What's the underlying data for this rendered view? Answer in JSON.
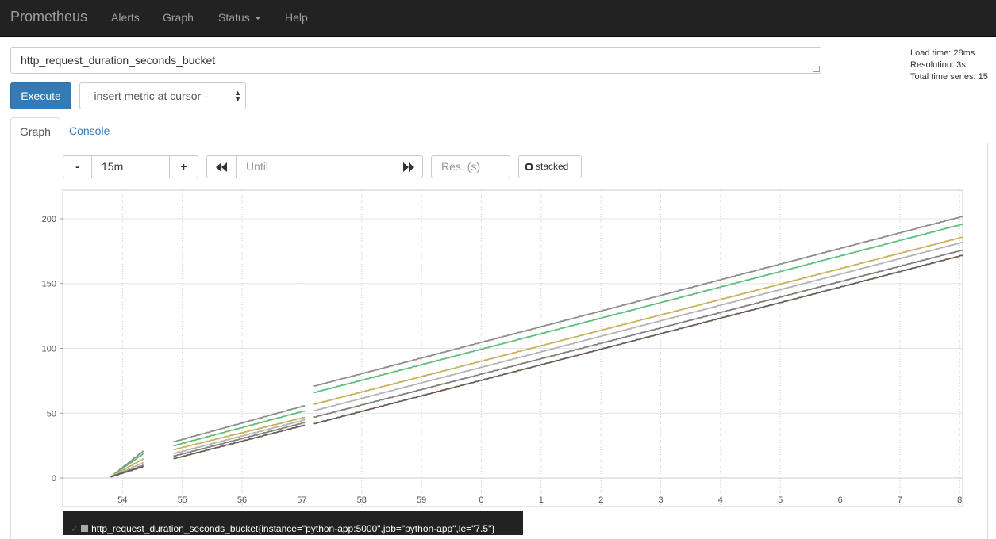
{
  "navbar": {
    "brand": "Prometheus",
    "links": [
      "Alerts",
      "Graph",
      "Status",
      "Help"
    ]
  },
  "query": {
    "expression": "http_request_duration_seconds_bucket",
    "execute_label": "Execute",
    "metric_select": "- insert metric at cursor -"
  },
  "stats": {
    "load_time": "Load time: 28ms",
    "resolution": "Resolution: 3s",
    "total_series": "Total time series: 15"
  },
  "tabs": [
    "Graph",
    "Console"
  ],
  "controls": {
    "minus": "-",
    "range": "15m",
    "plus": "+",
    "back_icon": "fast-backward-icon",
    "until_placeholder": "Until",
    "forward_icon": "fast-forward-icon",
    "res_placeholder": "Res. (s)",
    "stacked_label": "stacked"
  },
  "chart_data": {
    "type": "line",
    "x_tick_labels": [
      "54",
      "55",
      "56",
      "57",
      "58",
      "59",
      "0",
      "1",
      "2",
      "3",
      "4",
      "5",
      "6",
      "7",
      "8"
    ],
    "y_tick_labels": [
      "0",
      "50",
      "100",
      "150",
      "200"
    ],
    "ylim": [
      -22,
      222
    ],
    "xlim": [
      53.0,
      68.05
    ],
    "grid": true,
    "colors": [
      "#8c8c8c",
      "#5cbd7d",
      "#c8b15b",
      "#b3b3b3",
      "#7e7e7e",
      "#6b5b50"
    ],
    "series": [
      {
        "segments": [
          {
            "x": [
              53.8,
              54.35
            ],
            "y": [
              1,
              21
            ]
          },
          {
            "x": [
              54.85,
              57.05
            ],
            "y": [
              28,
              56
            ]
          },
          {
            "x": [
              57.2,
              68.05
            ],
            "y": [
              71,
              202
            ]
          }
        ]
      },
      {
        "segments": [
          {
            "x": [
              53.8,
              54.35
            ],
            "y": [
              1,
              19
            ]
          },
          {
            "x": [
              54.85,
              57.05
            ],
            "y": [
              25,
              52
            ]
          },
          {
            "x": [
              57.2,
              68.05
            ],
            "y": [
              66,
              196
            ]
          }
        ]
      },
      {
        "segments": [
          {
            "x": [
              53.8,
              54.35
            ],
            "y": [
              1,
              15
            ]
          },
          {
            "x": [
              54.85,
              57.05
            ],
            "y": [
              22,
              47
            ]
          },
          {
            "x": [
              57.2,
              68.05
            ],
            "y": [
              57,
              186
            ]
          }
        ]
      },
      {
        "segments": [
          {
            "x": [
              53.8,
              54.35
            ],
            "y": [
              1,
              12
            ]
          },
          {
            "x": [
              54.85,
              57.05
            ],
            "y": [
              19,
              45
            ]
          },
          {
            "x": [
              57.2,
              68.05
            ],
            "y": [
              52,
              182
            ]
          }
        ]
      },
      {
        "segments": [
          {
            "x": [
              53.8,
              54.35
            ],
            "y": [
              1,
              10
            ]
          },
          {
            "x": [
              54.85,
              57.05
            ],
            "y": [
              17,
              43
            ]
          },
          {
            "x": [
              57.2,
              68.05
            ],
            "y": [
              47,
              176
            ]
          }
        ]
      },
      {
        "segments": [
          {
            "x": [
              53.8,
              54.35
            ],
            "y": [
              1,
              9
            ]
          },
          {
            "x": [
              54.85,
              57.05
            ],
            "y": [
              15,
              41
            ]
          },
          {
            "x": [
              57.2,
              68.05
            ],
            "y": [
              42,
              172
            ]
          }
        ]
      }
    ],
    "legend": "http_request_duration_seconds_bucket{instance=\"python-app:5000\",job=\"python-app\",le=\"7.5\"}"
  }
}
